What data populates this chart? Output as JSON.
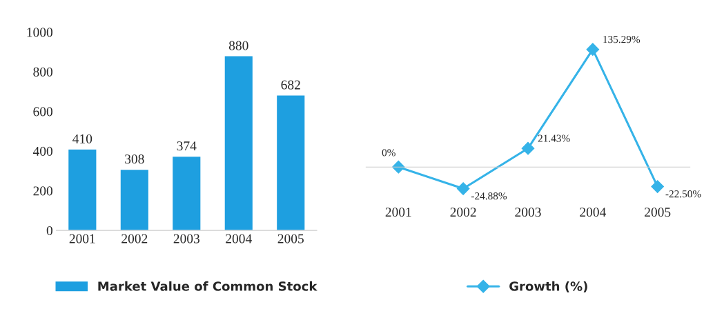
{
  "chart_data": [
    {
      "type": "bar",
      "categories": [
        "2001",
        "2002",
        "2003",
        "2004",
        "2005"
      ],
      "series": [
        {
          "name": "Market Value of Common Stock",
          "color": "#1e9fe0",
          "values": [
            410,
            308,
            374,
            880,
            682
          ]
        }
      ],
      "ylim": [
        0,
        1000
      ],
      "yticks": [
        0,
        200,
        400,
        600,
        800,
        1000
      ],
      "data_labels": true,
      "grid": false,
      "legend": "bottom"
    },
    {
      "type": "line",
      "categories": [
        "2001",
        "2002",
        "2003",
        "2004",
        "2005"
      ],
      "series": [
        {
          "name": "Growth (%)",
          "color": "#35b3e8",
          "values": [
            0,
            -24.88,
            21.43,
            135.29,
            -22.5
          ],
          "value_labels": [
            "0%",
            "-24.88%",
            "21.43%",
            "135.29%",
            "-22.50%"
          ]
        }
      ],
      "marker": "diamond",
      "line_style": "solid",
      "tick_labels": "x",
      "grid": false,
      "legend": "bottom"
    }
  ]
}
